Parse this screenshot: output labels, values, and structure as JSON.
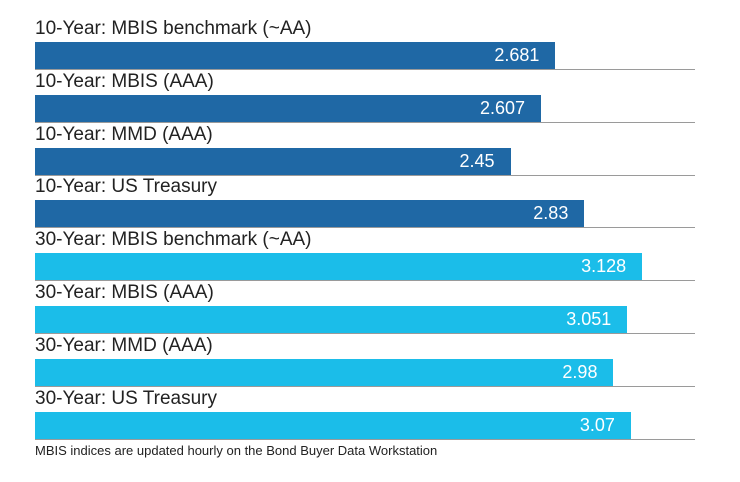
{
  "chart_data": {
    "type": "bar",
    "orientation": "horizontal",
    "categories": [
      "10-Year: MBIS benchmark (~AA)",
      "10-Year: MBIS (AAA)",
      "10-Year: MMD (AAA)",
      "10-Year: US Treasury",
      "30-Year: MBIS benchmark (~AA)",
      "30-Year: MBIS (AAA)",
      "30-Year: MMD (AAA)",
      "30-Year: US Treasury"
    ],
    "values": [
      2.681,
      2.607,
      2.45,
      2.83,
      3.128,
      3.051,
      2.98,
      3.07
    ],
    "value_labels": [
      "2.681",
      "2.607",
      "2.45",
      "2.83",
      "3.128",
      "3.051",
      "2.98",
      "3.07"
    ],
    "groups": [
      "10-Year",
      "10-Year",
      "10-Year",
      "10-Year",
      "30-Year",
      "30-Year",
      "30-Year",
      "30-Year"
    ],
    "xlim": [
      0,
      3.4
    ],
    "grid": false,
    "legend": "none",
    "colors": {
      "10-Year": "#1f68a5",
      "30-Year": "#1bbde9"
    }
  },
  "footnote": "MBIS indices are updated hourly on the Bond Buyer Data Workstation"
}
